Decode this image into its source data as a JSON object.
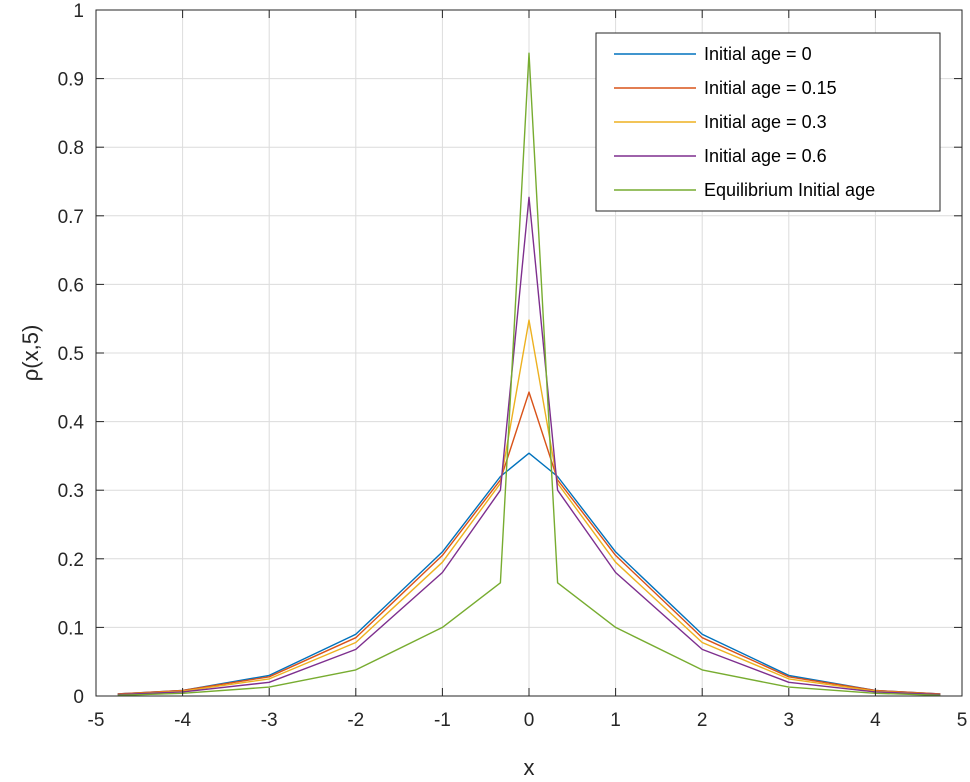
{
  "chart_data": {
    "type": "line",
    "title": "",
    "xlabel": "x",
    "ylabel": "ρ(x,5)",
    "xlim": [
      -5,
      5
    ],
    "ylim": [
      0,
      1
    ],
    "xticks": [
      "-5",
      "-4",
      "-3",
      "-2",
      "-1",
      "0",
      "1",
      "2",
      "3",
      "4",
      "5"
    ],
    "yticks": [
      "0",
      "0.1",
      "0.2",
      "0.3",
      "0.4",
      "0.5",
      "0.6",
      "0.7",
      "0.8",
      "0.9",
      "1"
    ],
    "grid": true,
    "legend_position": "top-right",
    "series": [
      {
        "name": "Initial age = 0",
        "color": "#0072BD",
        "x": [
          -4.75,
          -4,
          -3,
          -2,
          -1,
          -0.33,
          0,
          0.33,
          1,
          2,
          3,
          4,
          4.75
        ],
        "y": [
          0.003,
          0.008,
          0.03,
          0.09,
          0.21,
          0.32,
          0.354,
          0.32,
          0.21,
          0.09,
          0.03,
          0.008,
          0.003
        ]
      },
      {
        "name": "Initial age = 0.15",
        "color": "#D95319",
        "x": [
          -4.75,
          -4,
          -3,
          -2,
          -1,
          -0.33,
          0,
          0.33,
          1,
          2,
          3,
          4,
          4.75
        ],
        "y": [
          0.003,
          0.008,
          0.028,
          0.085,
          0.205,
          0.315,
          0.443,
          0.315,
          0.205,
          0.085,
          0.028,
          0.008,
          0.003
        ]
      },
      {
        "name": "Initial age = 0.3",
        "color": "#EDB120",
        "x": [
          -4.75,
          -4,
          -3,
          -2,
          -1,
          -0.33,
          0,
          0.33,
          1,
          2,
          3,
          4,
          4.75
        ],
        "y": [
          0.002,
          0.007,
          0.025,
          0.078,
          0.195,
          0.31,
          0.548,
          0.31,
          0.195,
          0.078,
          0.025,
          0.007,
          0.002
        ]
      },
      {
        "name": "Initial age = 0.6",
        "color": "#7E2F8E",
        "x": [
          -4.75,
          -4,
          -3,
          -2,
          -1,
          -0.33,
          0,
          0.33,
          1,
          2,
          3,
          4,
          4.75
        ],
        "y": [
          0.002,
          0.006,
          0.02,
          0.068,
          0.18,
          0.3,
          0.727,
          0.3,
          0.18,
          0.068,
          0.02,
          0.006,
          0.002
        ]
      },
      {
        "name": "Equilibrium Initial age",
        "color": "#77AC30",
        "x": [
          -4.75,
          -4,
          -3,
          -2,
          -1,
          -0.33,
          0,
          0.33,
          1,
          2,
          3,
          4,
          4.75
        ],
        "y": [
          0.001,
          0.004,
          0.013,
          0.038,
          0.1,
          0.165,
          0.937,
          0.165,
          0.1,
          0.038,
          0.013,
          0.004,
          0.001
        ]
      }
    ]
  }
}
